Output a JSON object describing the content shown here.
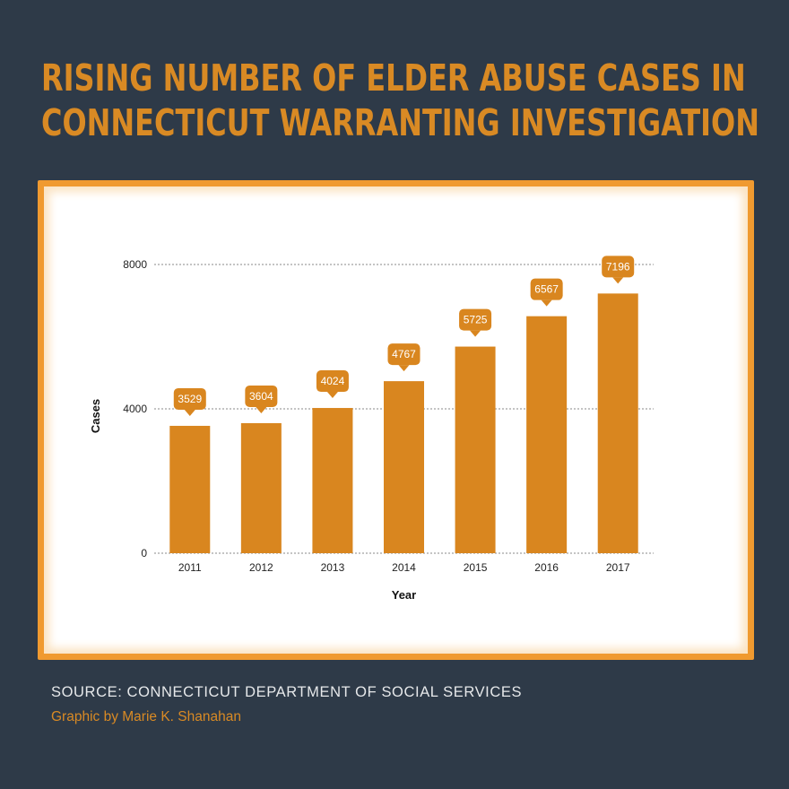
{
  "title_lines": [
    "Rising number of elder abuse cases in",
    "Connecticut warranting investigation"
  ],
  "source": "SOURCE: CONNECTICUT DEPARTMENT OF SOCIAL SERVICES",
  "credit": "Graphic by Marie K. Shanahan",
  "colors": {
    "background": "#2e3a48",
    "accent": "#d98a24",
    "bar": "#d9861f",
    "frame": "#f09a30"
  },
  "chart_data": {
    "type": "bar",
    "categories": [
      "2011",
      "2012",
      "2013",
      "2014",
      "2015",
      "2016",
      "2017"
    ],
    "values": [
      3529,
      3604,
      4024,
      4767,
      5725,
      6567,
      7196
    ],
    "data_labels": [
      "3529",
      "3604",
      "4024",
      "4767",
      "5725",
      "6567",
      "7196"
    ],
    "xlabel": "Year",
    "ylabel": "Cases",
    "ylim": [
      0,
      8000
    ],
    "yticks": [
      0,
      4000,
      8000
    ],
    "ytick_labels": [
      "0",
      "4000",
      "8000"
    ],
    "grid": "dashed horizontal",
    "legend": "none"
  }
}
